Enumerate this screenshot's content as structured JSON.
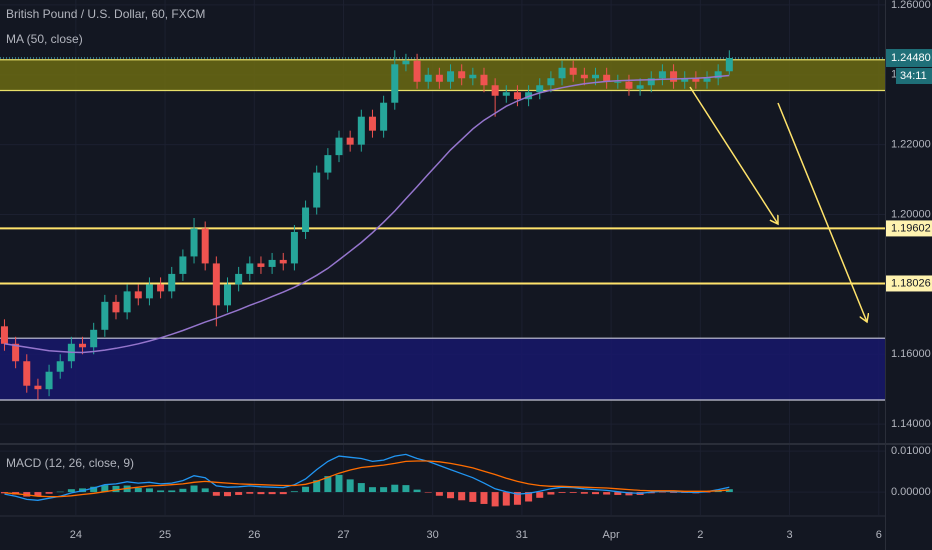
{
  "chart_data": [
    {
      "type": "candlestick",
      "title": "British Pound / U.S. Dollar, 60, FXCM",
      "up_color": "#26a69a",
      "down_color": "#ef5350",
      "x": [
        0.2,
        0.325,
        0.45,
        0.575,
        0.7,
        0.825,
        0.95,
        1.075,
        1.2,
        1.325,
        1.45,
        1.575,
        1.7,
        1.825,
        1.95,
        2.075,
        2.2,
        2.325,
        2.45,
        2.575,
        2.7,
        2.825,
        2.95,
        3.075,
        3.2,
        3.325,
        3.45,
        3.575,
        3.7,
        3.825,
        3.95,
        4.075,
        4.2,
        4.325,
        4.45,
        4.575,
        4.7,
        4.825,
        4.95,
        5.075,
        5.2,
        5.325,
        5.45,
        5.575,
        5.7,
        5.825,
        5.95,
        6.075,
        6.2,
        6.325,
        6.45,
        6.575,
        6.7,
        6.825,
        6.95,
        7.075,
        7.2,
        7.325,
        7.45,
        7.575,
        7.7,
        7.825,
        7.95,
        8.075,
        8.2,
        8.325
      ],
      "open": [
        1.168,
        1.163,
        1.158,
        1.151,
        1.15,
        1.155,
        1.158,
        1.163,
        1.162,
        1.167,
        1.175,
        1.172,
        1.178,
        1.176,
        1.18,
        1.178,
        1.183,
        1.188,
        1.196,
        1.186,
        1.174,
        1.18,
        1.183,
        1.186,
        1.185,
        1.187,
        1.186,
        1.195,
        1.202,
        1.212,
        1.217,
        1.222,
        1.22,
        1.228,
        1.224,
        1.232,
        1.243,
        1.244,
        1.238,
        1.24,
        1.238,
        1.241,
        1.239,
        1.24,
        1.237,
        1.234,
        1.235,
        1.233,
        1.235,
        1.237,
        1.239,
        1.242,
        1.24,
        1.239,
        1.24,
        1.238,
        1.238,
        1.236,
        1.237,
        1.239,
        1.241,
        1.238,
        1.239,
        1.238,
        1.239,
        1.241
      ],
      "high": [
        1.17,
        1.165,
        1.16,
        1.153,
        1.157,
        1.16,
        1.165,
        1.165,
        1.169,
        1.177,
        1.177,
        1.18,
        1.18,
        1.182,
        1.182,
        1.185,
        1.19,
        1.199,
        1.198,
        1.188,
        1.182,
        1.185,
        1.188,
        1.188,
        1.189,
        1.189,
        1.197,
        1.204,
        1.214,
        1.219,
        1.224,
        1.224,
        1.23,
        1.23,
        1.234,
        1.247,
        1.246,
        1.246,
        1.242,
        1.242,
        1.243,
        1.243,
        1.242,
        1.242,
        1.239,
        1.237,
        1.237,
        1.237,
        1.239,
        1.241,
        1.244,
        1.244,
        1.242,
        1.242,
        1.242,
        1.24,
        1.24,
        1.239,
        1.241,
        1.243,
        1.243,
        1.241,
        1.241,
        1.241,
        1.243,
        1.247
      ],
      "low": [
        1.161,
        1.156,
        1.149,
        1.147,
        1.148,
        1.153,
        1.156,
        1.16,
        1.16,
        1.165,
        1.17,
        1.17,
        1.174,
        1.174,
        1.176,
        1.176,
        1.181,
        1.186,
        1.184,
        1.168,
        1.172,
        1.178,
        1.181,
        1.183,
        1.183,
        1.184,
        1.184,
        1.193,
        1.2,
        1.21,
        1.215,
        1.218,
        1.218,
        1.222,
        1.222,
        1.23,
        1.241,
        1.236,
        1.236,
        1.236,
        1.236,
        1.237,
        1.237,
        1.235,
        1.228,
        1.232,
        1.231,
        1.231,
        1.233,
        1.235,
        1.237,
        1.238,
        1.237,
        1.237,
        1.236,
        1.236,
        1.234,
        1.234,
        1.235,
        1.237,
        1.236,
        1.236,
        1.236,
        1.236,
        1.237,
        1.24
      ],
      "close": [
        1.163,
        1.158,
        1.151,
        1.15,
        1.155,
        1.158,
        1.163,
        1.162,
        1.167,
        1.175,
        1.172,
        1.178,
        1.176,
        1.18,
        1.178,
        1.183,
        1.188,
        1.196,
        1.186,
        1.174,
        1.18,
        1.183,
        1.186,
        1.185,
        1.187,
        1.186,
        1.195,
        1.202,
        1.212,
        1.217,
        1.222,
        1.22,
        1.228,
        1.224,
        1.232,
        1.243,
        1.244,
        1.238,
        1.24,
        1.238,
        1.241,
        1.239,
        1.24,
        1.237,
        1.234,
        1.235,
        1.233,
        1.235,
        1.237,
        1.239,
        1.242,
        1.24,
        1.239,
        1.24,
        1.238,
        1.238,
        1.236,
        1.237,
        1.239,
        1.241,
        1.238,
        1.239,
        1.238,
        1.239,
        1.241,
        1.2448
      ],
      "series": [
        {
          "name": "MA (50, close)",
          "color": "#9575cd",
          "values": [
            1.163,
            1.1625,
            1.162,
            1.1615,
            1.161,
            1.1608,
            1.1606,
            1.1605,
            1.1608,
            1.1612,
            1.1617,
            1.1623,
            1.163,
            1.1638,
            1.1647,
            1.1657,
            1.1668,
            1.168,
            1.1692,
            1.1703,
            1.1715,
            1.1727,
            1.174,
            1.1752,
            1.1765,
            1.1778,
            1.1792,
            1.1808,
            1.1826,
            1.1846,
            1.187,
            1.1895,
            1.192,
            1.1948,
            1.1978,
            1.201,
            1.2045,
            1.208,
            1.2115,
            1.215,
            1.2185,
            1.2215,
            1.2245,
            1.227,
            1.229,
            1.231,
            1.2325,
            1.2338,
            1.2348,
            1.2356,
            1.2363,
            1.2369,
            1.2374,
            1.2378,
            1.2381,
            1.2383,
            1.2384,
            1.2385,
            1.2386,
            1.2387,
            1.2388,
            1.2389,
            1.239,
            1.2392,
            1.2395,
            1.2398
          ]
        }
      ],
      "xlim": [
        0.15,
        10.07
      ],
      "xticks": [
        {
          "value": 1,
          "label": "24"
        },
        {
          "value": 2,
          "label": "25"
        },
        {
          "value": 3,
          "label": "26"
        },
        {
          "value": 4,
          "label": "27"
        },
        {
          "value": 5,
          "label": "30"
        },
        {
          "value": 6,
          "label": "31"
        },
        {
          "value": 7,
          "label": "Apr"
        },
        {
          "value": 8,
          "label": "2"
        },
        {
          "value": 9,
          "label": "3"
        },
        {
          "value": 10,
          "label": "6"
        }
      ],
      "ylim": [
        1.1346,
        1.2614
      ],
      "yticks": [
        {
          "value": 1.14,
          "label": "1.14000"
        },
        {
          "value": 1.16,
          "label": "1.16000"
        },
        {
          "value": 1.18,
          "label": "1.18000"
        },
        {
          "value": 1.2,
          "label": "1.20000"
        },
        {
          "value": 1.22,
          "label": "1.22000"
        },
        {
          "value": 1.24,
          "label": "1.24000"
        },
        {
          "value": 1.26,
          "label": "1.26000"
        }
      ],
      "grid": true,
      "zones": [
        {
          "from": 1.2355,
          "to": 1.2443,
          "color": "#6b6a12",
          "border": "#e8df6a"
        },
        {
          "from": 1.1469,
          "to": 1.1646,
          "color": "#17176b",
          "border": "#c8c8d8"
        }
      ],
      "levels": [
        {
          "value": 1.19602,
          "color": "#ffe36b"
        },
        {
          "value": 1.18026,
          "color": "#ffe36b"
        }
      ],
      "last_price": {
        "value": 1.2448,
        "label": "1.24480",
        "color": "#4dd0e1"
      },
      "countdown": "34:11"
    },
    {
      "type": "macd",
      "title": "MACD (12, 26, close, 9)",
      "macd_color": "#2196f3",
      "signal_color": "#ff6d00",
      "pos_color": "#26a69a",
      "neg_color": "#ef5350",
      "macd": [
        -0.0005,
        -0.001,
        -0.0018,
        -0.002,
        -0.0015,
        -0.001,
        -0.0002,
        0.0003,
        0.001,
        0.0018,
        0.002,
        0.0025,
        0.0022,
        0.0024,
        0.002,
        0.0022,
        0.0028,
        0.004,
        0.0035,
        0.0015,
        0.0012,
        0.0013,
        0.0015,
        0.0013,
        0.0012,
        0.0011,
        0.0018,
        0.0032,
        0.0055,
        0.0075,
        0.0088,
        0.0085,
        0.0082,
        0.0075,
        0.0078,
        0.0088,
        0.0092,
        0.0082,
        0.0075,
        0.0065,
        0.0055,
        0.0045,
        0.0035,
        0.0022,
        0.0008,
        0.0001,
        -0.0005,
        -0.0003,
        0.0002,
        0.0008,
        0.0012,
        0.0011,
        0.0008,
        0.0006,
        0.0004,
        0.0001,
        -0.0002,
        -0.0003,
        0,
        0.0002,
        0.0001,
        0,
        -0.0001,
        0.0001,
        0.0006,
        0.0012
      ],
      "signal": [
        -0.0002,
        -0.0004,
        -0.0007,
        -0.001,
        -0.0011,
        -0.0011,
        -0.0009,
        -0.0006,
        -0.0003,
        0.0001,
        0.0005,
        0.0009,
        0.0012,
        0.0015,
        0.0016,
        0.0018,
        0.002,
        0.0024,
        0.0026,
        0.0024,
        0.0022,
        0.002,
        0.0019,
        0.0018,
        0.0017,
        0.0016,
        0.0016,
        0.0019,
        0.0026,
        0.0036,
        0.0046,
        0.0054,
        0.006,
        0.0063,
        0.0066,
        0.007,
        0.0075,
        0.0076,
        0.0076,
        0.0074,
        0.007,
        0.0065,
        0.0059,
        0.0051,
        0.0043,
        0.0034,
        0.0026,
        0.002,
        0.0016,
        0.0014,
        0.0014,
        0.0013,
        0.0012,
        0.0011,
        0.001,
        0.0008,
        0.0006,
        0.0004,
        0.0003,
        0.0003,
        0.0003,
        0.0002,
        0.0002,
        0.0002,
        0.0003,
        0.0005
      ],
      "histogram": [
        -0.0003,
        -0.0006,
        -0.0011,
        -0.001,
        -0.0004,
        0.0001,
        0.0007,
        0.0009,
        0.0013,
        0.0017,
        0.0015,
        0.0016,
        0.001,
        0.0009,
        0.0004,
        0.0004,
        0.0008,
        0.0016,
        0.0009,
        -0.0009,
        -0.001,
        -0.0007,
        -0.0004,
        -0.0005,
        -0.0005,
        -0.0005,
        0.0002,
        0.0013,
        0.0029,
        0.0039,
        0.0042,
        0.0031,
        0.0022,
        0.0012,
        0.0012,
        0.0018,
        0.0017,
        0.0006,
        -0.0001,
        -0.0009,
        -0.0015,
        -0.002,
        -0.0024,
        -0.0029,
        -0.0035,
        -0.0033,
        -0.0031,
        -0.0023,
        -0.0014,
        -0.0006,
        -0.0002,
        -0.0002,
        -0.0004,
        -0.0005,
        -0.0006,
        -0.0007,
        -0.0008,
        -0.0007,
        -0.0003,
        -0.0001,
        -0.0002,
        -0.0002,
        -0.0003,
        -0.0001,
        0.0003,
        0.0007
      ],
      "ylim": [
        -0.0056,
        0.0115
      ],
      "yticks": [
        {
          "value": 0,
          "label": "0.00000"
        },
        {
          "value": 0.01,
          "label": "0.01000"
        }
      ]
    }
  ]
}
